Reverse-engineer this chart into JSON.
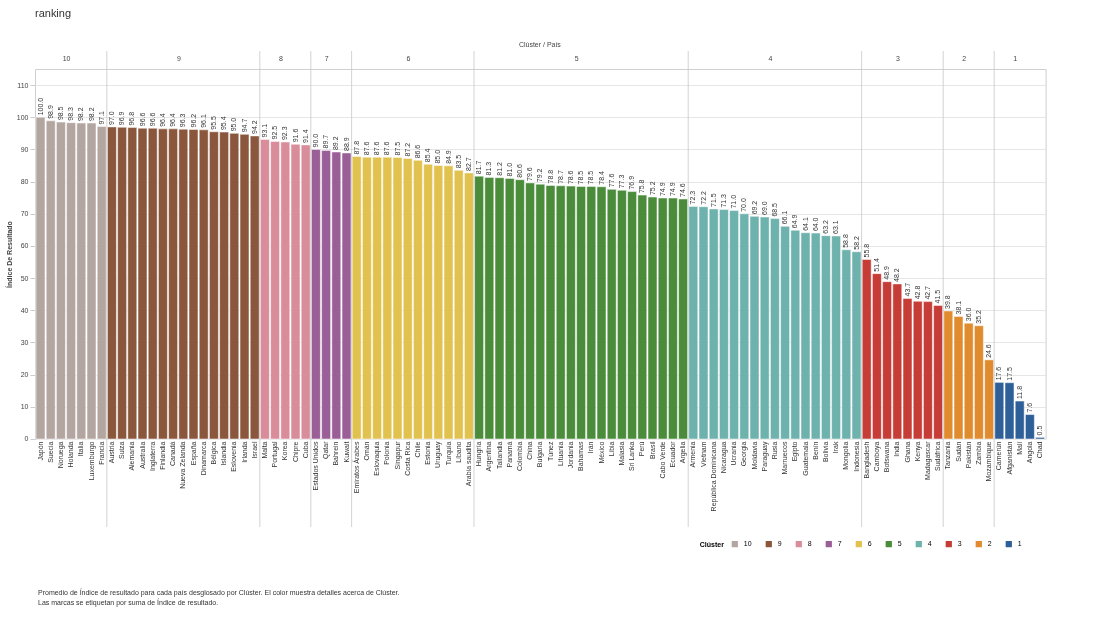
{
  "chart_data": {
    "type": "bar",
    "title": "ranking",
    "xlabel": "Clúster / País",
    "ylabel": "Índice De Resultado",
    "legend_title": "Clúster",
    "categories": [
      "Japón",
      "Suecia",
      "Noruega",
      "Holanda",
      "Italia",
      "Luxemburgo",
      "Francia",
      "Austria",
      "Suiza",
      "Alemania",
      "Australia",
      "Inglaterra",
      "Finlandia",
      "Canadá",
      "Nueva Zelanda",
      "España",
      "Dinamarca",
      "Bélgica",
      "Islandia",
      "Eslovenia",
      "Irlanda",
      "Israel",
      "Malta",
      "Portugal",
      "Korea",
      "Chipre",
      "Cuba",
      "Estados Unidos",
      "Qatar",
      "Bahrein",
      "Kuwait",
      "Emiratos Árabes",
      "Omán",
      "Eslovaquia",
      "Polonia",
      "Singapur",
      "Costa Rica",
      "Chile",
      "Estonia",
      "Uruguay",
      "Turquía",
      "Líbano",
      "Arabia saudita",
      "Hungría",
      "Argentina",
      "Tailandia",
      "Panamá",
      "Colombia",
      "China",
      "Bulgaria",
      "Túnez",
      "Lituania",
      "Jordania",
      "Bahamas",
      "Irán",
      "México",
      "Libia",
      "Malasia",
      "Sri Lanka",
      "Perú",
      "Brasil",
      "Cabo Verde",
      "Ecuador",
      "Argelia",
      "Armenia",
      "Vietnam",
      "República Dominicana",
      "Nicaragua",
      "Ucrania",
      "Georgia",
      "Moldavia",
      "Paraguay",
      "Rusia",
      "Marruecos",
      "Egipto",
      "Guatemala",
      "Benín",
      "Bolivia",
      "Irak",
      "Mongolia",
      "Indonesia",
      "Bangladesh",
      "Camboya",
      "Botswana",
      "India",
      "Ghana",
      "Kenya",
      "Madagascar",
      "Sudáfrica",
      "Tanzania",
      "Sudán",
      "Pakistán",
      "Zambia",
      "Mozambique",
      "Camerún",
      "Afganistán",
      "Malí",
      "Angola",
      "Chad"
    ],
    "series": [
      {
        "name": "10",
        "color": "#b3a59f",
        "values": [
          100.0,
          98.9,
          98.5,
          98.3,
          98.2,
          98.2,
          97.1,
          null,
          null,
          null,
          null,
          null,
          null,
          null,
          null,
          null,
          null,
          null,
          null,
          null,
          null,
          null,
          null,
          null,
          null,
          null,
          null,
          null,
          null,
          null,
          null,
          null,
          null,
          null,
          null,
          null,
          null,
          null,
          null,
          null,
          null,
          null,
          null,
          null,
          null,
          null,
          null,
          null,
          null,
          null,
          null,
          null,
          null,
          null,
          null,
          null,
          null,
          null,
          null,
          null,
          null,
          null,
          null,
          null,
          null,
          null,
          null,
          null,
          null,
          null,
          null,
          null,
          null,
          null,
          null,
          null,
          null,
          null,
          null,
          null,
          null,
          null,
          null,
          null,
          null,
          null,
          null,
          null,
          null,
          null,
          null,
          null,
          null,
          null,
          null,
          null,
          null,
          null,
          null
        ],
        "value_labels": [
          "100.0",
          "98.9",
          "98.5",
          "98.3",
          "98.2",
          "98.2",
          "97.1",
          null,
          null,
          null,
          null,
          null,
          null,
          null,
          null,
          null,
          null,
          null,
          null,
          null,
          null,
          null,
          null,
          null,
          null,
          null,
          null,
          null,
          null,
          null,
          null,
          null,
          null,
          null,
          null,
          null,
          null,
          null,
          null,
          null,
          null,
          null,
          null,
          null,
          null,
          null,
          null,
          null,
          null,
          null,
          null,
          null,
          null,
          null,
          null,
          null,
          null,
          null,
          null,
          null,
          null,
          null,
          null,
          null,
          null,
          null,
          null,
          null,
          null,
          null,
          null,
          null,
          null,
          null,
          null,
          null,
          null,
          null,
          null,
          null,
          null,
          null,
          null,
          null,
          null,
          null,
          null,
          null,
          null,
          null,
          null,
          null,
          null,
          null,
          null,
          null,
          null,
          null,
          null
        ]
      },
      {
        "name": "9",
        "color": "#8a573c",
        "values": [
          null,
          null,
          null,
          null,
          null,
          null,
          null,
          97.0,
          96.9,
          96.8,
          96.6,
          96.6,
          96.4,
          96.4,
          96.3,
          96.2,
          96.1,
          95.5,
          95.4,
          95.0,
          94.7,
          94.2,
          null,
          null,
          null,
          null,
          null,
          null,
          null,
          null,
          null,
          null,
          null,
          null,
          null,
          null,
          null,
          null,
          null,
          null,
          null,
          null,
          null,
          null,
          null,
          null,
          null,
          null,
          null,
          null,
          null,
          null,
          null,
          null,
          null,
          null,
          null,
          null,
          null,
          null,
          null,
          null,
          null,
          null,
          null,
          null,
          null,
          null,
          null,
          null,
          null,
          null,
          null,
          null,
          null,
          null,
          null,
          null,
          null,
          null,
          null,
          null,
          null,
          null,
          null,
          null,
          null,
          null,
          null,
          null,
          null,
          null,
          null,
          null,
          null,
          null,
          null,
          null,
          null
        ],
        "value_labels": [
          null,
          null,
          null,
          null,
          null,
          null,
          null,
          "97.0",
          "96.9",
          "96.8",
          "96.6",
          "96.6",
          "96.4",
          "96.4",
          "96.3",
          "96.2",
          "96.1",
          "95.5",
          "95.4",
          "95.0",
          "94.7",
          "94.2",
          null,
          null,
          null,
          null,
          null,
          null,
          null,
          null,
          null,
          null,
          null,
          null,
          null,
          null,
          null,
          null,
          null,
          null,
          null,
          null,
          null,
          null,
          null,
          null,
          null,
          null,
          null,
          null,
          null,
          null,
          null,
          null,
          null,
          null,
          null,
          null,
          null,
          null,
          null,
          null,
          null,
          null,
          null,
          null,
          null,
          null,
          null,
          null,
          null,
          null,
          null,
          null,
          null,
          null,
          null,
          null,
          null,
          null,
          null,
          null,
          null,
          null,
          null,
          null,
          null,
          null,
          null,
          null,
          null,
          null,
          null,
          null,
          null,
          null,
          null,
          null,
          null
        ]
      },
      {
        "name": "8",
        "color": "#d98c9a",
        "values": [
          null,
          null,
          null,
          null,
          null,
          null,
          null,
          null,
          null,
          null,
          null,
          null,
          null,
          null,
          null,
          null,
          null,
          null,
          null,
          null,
          null,
          null,
          93.1,
          92.5,
          92.3,
          91.6,
          91.4,
          null,
          null,
          null,
          null,
          null,
          null,
          null,
          null,
          null,
          null,
          null,
          null,
          null,
          null,
          null,
          null,
          null,
          null,
          null,
          null,
          null,
          null,
          null,
          null,
          null,
          null,
          null,
          null,
          null,
          null,
          null,
          null,
          null,
          null,
          null,
          null,
          null,
          null,
          null,
          null,
          null,
          null,
          null,
          null,
          null,
          null,
          null,
          null,
          null,
          null,
          null,
          null,
          null,
          null,
          null,
          null,
          null,
          null,
          null,
          null,
          null,
          null,
          null,
          null,
          null,
          null,
          null,
          null,
          null,
          null,
          null,
          null
        ]
      },
      {
        "name": "7",
        "color": "#9b5f98",
        "values": [
          null,
          null,
          null,
          null,
          null,
          null,
          null,
          null,
          null,
          null,
          null,
          null,
          null,
          null,
          null,
          null,
          null,
          null,
          null,
          null,
          null,
          null,
          null,
          null,
          null,
          null,
          null,
          90.0,
          89.7,
          89.2,
          88.9,
          null,
          null,
          null,
          null,
          null,
          null,
          null,
          null,
          null,
          null,
          null,
          null,
          null,
          null,
          null,
          null,
          null,
          null,
          null,
          null,
          null,
          null,
          null,
          null,
          null,
          null,
          null,
          null,
          null,
          null,
          null,
          null,
          null,
          null,
          null,
          null,
          null,
          null,
          null,
          null,
          null,
          null,
          null,
          null,
          null,
          null,
          null,
          null,
          null,
          null,
          null,
          null,
          null,
          null,
          null,
          null,
          null,
          null,
          null,
          null,
          null,
          null,
          null,
          null,
          null,
          null,
          null,
          null
        ],
        "value_labels": [
          null,
          null,
          null,
          null,
          null,
          null,
          null,
          null,
          null,
          null,
          null,
          null,
          null,
          null,
          null,
          null,
          null,
          null,
          null,
          null,
          null,
          null,
          null,
          null,
          null,
          null,
          null,
          "90.0",
          "89.7",
          "89.2",
          "88.9",
          null,
          null,
          null,
          null,
          null,
          null,
          null,
          null,
          null,
          null,
          null,
          null,
          null,
          null,
          null,
          null,
          null,
          null,
          null,
          null,
          null,
          null,
          null,
          null,
          null,
          null,
          null,
          null,
          null,
          null,
          null,
          null,
          null,
          null,
          null,
          null,
          null,
          null,
          null,
          null,
          null,
          null,
          null,
          null,
          null,
          null,
          null,
          null,
          null,
          null,
          null,
          null,
          null,
          null,
          null,
          null,
          null,
          null,
          null,
          null,
          null,
          null,
          null,
          null,
          null,
          null,
          null,
          null
        ]
      },
      {
        "name": "6",
        "color": "#e2c24f",
        "values": [
          null,
          null,
          null,
          null,
          null,
          null,
          null,
          null,
          null,
          null,
          null,
          null,
          null,
          null,
          null,
          null,
          null,
          null,
          null,
          null,
          null,
          null,
          null,
          null,
          null,
          null,
          null,
          null,
          null,
          null,
          null,
          87.8,
          87.6,
          87.6,
          87.6,
          87.5,
          87.2,
          86.6,
          85.4,
          85.0,
          84.9,
          83.5,
          82.7,
          null,
          null,
          null,
          null,
          null,
          null,
          null,
          null,
          null,
          null,
          null,
          null,
          null,
          null,
          null,
          null,
          null,
          null,
          null,
          null,
          null,
          null,
          null,
          null,
          null,
          null,
          null,
          null,
          null,
          null,
          null,
          null,
          null,
          null,
          null,
          null,
          null,
          null,
          null,
          null,
          null,
          null,
          null,
          null,
          null,
          null,
          null,
          null,
          null,
          null,
          null,
          null,
          null,
          null,
          null,
          null
        ],
        "value_labels": [
          null,
          null,
          null,
          null,
          null,
          null,
          null,
          null,
          null,
          null,
          null,
          null,
          null,
          null,
          null,
          null,
          null,
          null,
          null,
          null,
          null,
          null,
          null,
          null,
          null,
          null,
          null,
          null,
          null,
          null,
          null,
          "87.8",
          "87.6",
          "87.6",
          "87.6",
          "87.5",
          "87.2",
          "86.6",
          "85.4",
          "85.0",
          "84.9",
          "83.5",
          "82.7",
          null,
          null,
          null,
          null,
          null,
          null,
          null,
          null,
          null,
          null,
          null,
          null,
          null,
          null,
          null,
          null,
          null,
          null,
          null,
          null,
          null,
          null,
          null,
          null,
          null,
          null,
          null,
          null,
          null,
          null,
          null,
          null,
          null,
          null,
          null,
          null,
          null,
          null,
          null,
          null,
          null,
          null,
          null,
          null,
          null,
          null,
          null,
          null,
          null,
          null,
          null,
          null,
          null,
          null,
          null,
          null
        ]
      },
      {
        "name": "5",
        "color": "#4a8c3a",
        "values": [
          null,
          null,
          null,
          null,
          null,
          null,
          null,
          null,
          null,
          null,
          null,
          null,
          null,
          null,
          null,
          null,
          null,
          null,
          null,
          null,
          null,
          null,
          null,
          null,
          null,
          null,
          null,
          null,
          null,
          null,
          null,
          null,
          null,
          null,
          null,
          null,
          null,
          null,
          null,
          null,
          null,
          null,
          null,
          81.7,
          81.3,
          81.2,
          81.0,
          80.6,
          79.6,
          79.2,
          78.8,
          78.7,
          78.6,
          78.5,
          78.5,
          78.4,
          77.6,
          77.3,
          76.9,
          75.8,
          75.2,
          74.9,
          74.9,
          74.6,
          null,
          null,
          null,
          null,
          null,
          null,
          null,
          null,
          null,
          null,
          null,
          null,
          null,
          null,
          null,
          null,
          null,
          null,
          null,
          null,
          null,
          null,
          null,
          null,
          null,
          null,
          null,
          null,
          null,
          null,
          null,
          null,
          null,
          null,
          null
        ],
        "value_labels": [
          null,
          null,
          null,
          null,
          null,
          null,
          null,
          null,
          null,
          null,
          null,
          null,
          null,
          null,
          null,
          null,
          null,
          null,
          null,
          null,
          null,
          null,
          null,
          null,
          null,
          null,
          null,
          null,
          null,
          null,
          null,
          null,
          null,
          null,
          null,
          null,
          null,
          null,
          null,
          null,
          null,
          null,
          null,
          "81.7",
          "81.3",
          "81.2",
          "81.0",
          "80.6",
          "79.6",
          "79.2",
          "78.8",
          "78.7",
          "78.6",
          "78.5",
          "78.5",
          "78.4",
          "77.6",
          "77.3",
          "76.9",
          "75.8",
          "75.2",
          "74.9",
          "74.9",
          "74.6",
          null,
          null,
          null,
          null,
          null,
          null,
          null,
          null,
          null,
          null,
          null,
          null,
          null,
          null,
          null,
          null,
          null,
          null,
          null,
          null,
          null,
          null,
          null,
          null,
          null,
          null,
          null,
          null,
          null,
          null,
          null,
          null,
          null,
          null,
          null
        ]
      },
      {
        "name": "4",
        "color": "#6db2ad",
        "values": [
          null,
          null,
          null,
          null,
          null,
          null,
          null,
          null,
          null,
          null,
          null,
          null,
          null,
          null,
          null,
          null,
          null,
          null,
          null,
          null,
          null,
          null,
          null,
          null,
          null,
          null,
          null,
          null,
          null,
          null,
          null,
          null,
          null,
          null,
          null,
          null,
          null,
          null,
          null,
          null,
          null,
          null,
          null,
          null,
          null,
          null,
          null,
          null,
          null,
          null,
          null,
          null,
          null,
          null,
          null,
          null,
          null,
          null,
          null,
          null,
          null,
          null,
          null,
          null,
          72.3,
          72.2,
          71.5,
          71.3,
          71.0,
          70.0,
          69.2,
          69.0,
          68.5,
          66.1,
          64.9,
          64.1,
          64.0,
          63.2,
          63.1,
          58.8,
          58.2,
          null,
          null,
          null,
          null,
          null,
          null,
          null,
          null,
          null,
          null,
          null,
          null,
          null,
          null,
          null,
          null,
          null,
          null
        ],
        "value_labels": [
          null,
          null,
          null,
          null,
          null,
          null,
          null,
          null,
          null,
          null,
          null,
          null,
          null,
          null,
          null,
          null,
          null,
          null,
          null,
          null,
          null,
          null,
          null,
          null,
          null,
          null,
          null,
          null,
          null,
          null,
          null,
          null,
          null,
          null,
          null,
          null,
          null,
          null,
          null,
          null,
          null,
          null,
          null,
          null,
          null,
          null,
          null,
          null,
          null,
          null,
          null,
          null,
          null,
          null,
          null,
          null,
          null,
          null,
          null,
          null,
          null,
          null,
          null,
          null,
          "72.3",
          "72.2",
          "71.5",
          "71.3",
          "71.0",
          "70.0",
          "69.2",
          "69.0",
          "68.5",
          "66.1",
          "64.9",
          "64.1",
          "64.0",
          "63.2",
          "63.1",
          "58.8",
          "58.2",
          null,
          null,
          null,
          null,
          null,
          null,
          null,
          null,
          null,
          null,
          null,
          null,
          null,
          null,
          null,
          null,
          null,
          null
        ]
      },
      {
        "name": "3",
        "color": "#c63d37",
        "values": [
          null,
          null,
          null,
          null,
          null,
          null,
          null,
          null,
          null,
          null,
          null,
          null,
          null,
          null,
          null,
          null,
          null,
          null,
          null,
          null,
          null,
          null,
          null,
          null,
          null,
          null,
          null,
          null,
          null,
          null,
          null,
          null,
          null,
          null,
          null,
          null,
          null,
          null,
          null,
          null,
          null,
          null,
          null,
          null,
          null,
          null,
          null,
          null,
          null,
          null,
          null,
          null,
          null,
          null,
          null,
          null,
          null,
          null,
          null,
          null,
          null,
          null,
          null,
          null,
          null,
          null,
          null,
          null,
          null,
          null,
          null,
          null,
          null,
          null,
          null,
          null,
          null,
          null,
          null,
          null,
          null,
          55.8,
          51.4,
          48.9,
          48.2,
          43.7,
          42.8,
          42.7,
          41.5,
          null,
          null,
          null,
          null,
          null,
          null,
          null,
          null,
          null,
          null
        ]
      },
      {
        "name": "2",
        "color": "#e08b2d",
        "values": [
          null,
          null,
          null,
          null,
          null,
          null,
          null,
          null,
          null,
          null,
          null,
          null,
          null,
          null,
          null,
          null,
          null,
          null,
          null,
          null,
          null,
          null,
          null,
          null,
          null,
          null,
          null,
          null,
          null,
          null,
          null,
          null,
          null,
          null,
          null,
          null,
          null,
          null,
          null,
          null,
          null,
          null,
          null,
          null,
          null,
          null,
          null,
          null,
          null,
          null,
          null,
          null,
          null,
          null,
          null,
          null,
          null,
          null,
          null,
          null,
          null,
          null,
          null,
          null,
          null,
          null,
          null,
          null,
          null,
          null,
          null,
          null,
          null,
          null,
          null,
          null,
          null,
          null,
          null,
          null,
          null,
          null,
          null,
          null,
          null,
          null,
          null,
          null,
          null,
          39.8,
          38.1,
          36.0,
          35.2,
          24.6,
          null,
          null,
          null,
          null,
          null
        ],
        "value_labels": [
          null,
          null,
          null,
          null,
          null,
          null,
          null,
          null,
          null,
          null,
          null,
          null,
          null,
          null,
          null,
          null,
          null,
          null,
          null,
          null,
          null,
          null,
          null,
          null,
          null,
          null,
          null,
          null,
          null,
          null,
          null,
          null,
          null,
          null,
          null,
          null,
          null,
          null,
          null,
          null,
          null,
          null,
          null,
          null,
          null,
          null,
          null,
          null,
          null,
          null,
          null,
          null,
          null,
          null,
          null,
          null,
          null,
          null,
          null,
          null,
          null,
          null,
          null,
          null,
          null,
          null,
          null,
          null,
          null,
          null,
          null,
          null,
          null,
          null,
          null,
          null,
          null,
          null,
          null,
          null,
          null,
          null,
          null,
          null,
          null,
          null,
          null,
          null,
          null,
          "39.8",
          "38.1",
          "36.0",
          "35.2",
          "24.6",
          null,
          null,
          null,
          null,
          null
        ]
      },
      {
        "name": "1",
        "color": "#2f5f98",
        "values": [
          null,
          null,
          null,
          null,
          null,
          null,
          null,
          null,
          null,
          null,
          null,
          null,
          null,
          null,
          null,
          null,
          null,
          null,
          null,
          null,
          null,
          null,
          null,
          null,
          null,
          null,
          null,
          null,
          null,
          null,
          null,
          null,
          null,
          null,
          null,
          null,
          null,
          null,
          null,
          null,
          null,
          null,
          null,
          null,
          null,
          null,
          null,
          null,
          null,
          null,
          null,
          null,
          null,
          null,
          null,
          null,
          null,
          null,
          null,
          null,
          null,
          null,
          null,
          null,
          null,
          null,
          null,
          null,
          null,
          null,
          null,
          null,
          null,
          null,
          null,
          null,
          null,
          null,
          null,
          null,
          null,
          null,
          null,
          null,
          null,
          null,
          null,
          null,
          null,
          null,
          null,
          null,
          null,
          null,
          17.6,
          17.5,
          11.8,
          7.6,
          0.5
        ]
      }
    ],
    "data_labels": true,
    "ylim": [
      0,
      115
    ],
    "yticks": [
      0,
      10,
      20,
      30,
      40,
      50,
      60,
      70,
      80,
      90,
      100,
      110
    ],
    "grid": "y",
    "legend": "bottom right",
    "annotations": [
      "Promedio de Índice de resultado para cada país desglosado por Clúster. El color muestra detalles acerca de Clúster.",
      "Las marcas se etiquetan por suma de Índice de resultado."
    ]
  }
}
